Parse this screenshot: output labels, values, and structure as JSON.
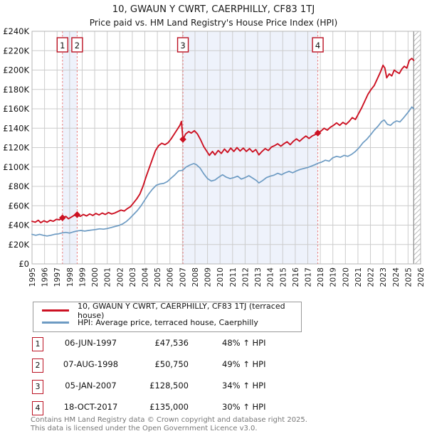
{
  "header": {
    "title": "10, GWAUN Y CWRT, CAERPHILLY, CF83 1TJ",
    "subtitle": "Price paid vs. HM Land Registry's House Price Index (HPI)"
  },
  "legend": {
    "items": [
      {
        "label": "10, GWAUN Y CWRT, CAERPHILLY, CF83 1TJ (terraced house)",
        "color": "#cc1122"
      },
      {
        "label": "HPI: Average price, terraced house, Caerphilly",
        "color": "#6d9bc3"
      }
    ]
  },
  "table": {
    "rows": [
      {
        "num": "1",
        "date": "06-JUN-1997",
        "price": "£47,536",
        "vs_hpi": "48% ↑ HPI"
      },
      {
        "num": "2",
        "date": "07-AUG-1998",
        "price": "£50,750",
        "vs_hpi": "49% ↑ HPI"
      },
      {
        "num": "3",
        "date": "05-JAN-2007",
        "price": "£128,500",
        "vs_hpi": "34% ↑ HPI"
      },
      {
        "num": "4",
        "date": "18-OCT-2017",
        "price": "£135,000",
        "vs_hpi": "30% ↑ HPI"
      }
    ]
  },
  "footer": {
    "line1": "Contains HM Land Registry data © Crown copyright and database right 2025.",
    "line2": "This data is licensed under the Open Government Licence v3.0."
  },
  "chart_data": {
    "type": "line",
    "title": "10, GWAUN Y CWRT, CAERPHILLY, CF83 1TJ",
    "subtitle": "Price paid vs. HM Land Registry's House Price Index (HPI)",
    "xlabel": "",
    "ylabel": "",
    "grid": true,
    "legend_position": "bottom",
    "axis": {
      "x_min": 1995,
      "x_max": 2026,
      "y_min": 0,
      "y_max": 240000,
      "y_step": 20000
    },
    "x_ticks": [
      1995,
      1996,
      1997,
      1998,
      1999,
      2000,
      2001,
      2002,
      2003,
      2004,
      2005,
      2006,
      2007,
      2008,
      2009,
      2010,
      2011,
      2012,
      2013,
      2014,
      2015,
      2016,
      2017,
      2018,
      2019,
      2020,
      2021,
      2022,
      2023,
      2024,
      2025,
      2026
    ],
    "y_tick_labels": [
      "£0",
      "£20K",
      "£40K",
      "£60K",
      "£80K",
      "£100K",
      "£120K",
      "£140K",
      "£160K",
      "£180K",
      "£200K",
      "£220K",
      "£240K"
    ],
    "colors": {
      "grid": "#cccccc",
      "plot_border": "#b5b5b5",
      "band": "#eef2fb",
      "sale_dash": "#e87a7a",
      "badge_border": "#bb1122",
      "hatch": "#bbbbbb",
      "hatch_edge": "#8a8a8a"
    },
    "shaded_periods": [
      [
        1997.43,
        1998.6
      ],
      [
        2007.04,
        2017.8
      ]
    ],
    "hatch": {
      "from": 2025.45,
      "to": 2026
    },
    "sales": [
      {
        "label": "1",
        "year": 1997.43,
        "price_value": 47536,
        "date": "06-JUN-1997",
        "vs_hpi": "48% ↑ HPI"
      },
      {
        "label": "2",
        "year": 1998.6,
        "price_value": 50750,
        "date": "07-AUG-1998",
        "vs_hpi": "49% ↑ HPI"
      },
      {
        "label": "3",
        "year": 2007.04,
        "price_value": 128500,
        "date": "05-JAN-2007",
        "vs_hpi": "34% ↑ HPI"
      },
      {
        "label": "4",
        "year": 2017.8,
        "price_value": 135000,
        "date": "18-OCT-2017",
        "vs_hpi": "30% ↑ HPI"
      }
    ],
    "series": [
      {
        "name": "10, GWAUN Y CWRT, CAERPHILLY, CF83 1TJ (terraced house)",
        "color": "#cc1122",
        "width": 1.9,
        "points": [
          [
            1995.0,
            44000
          ],
          [
            1995.25,
            43000
          ],
          [
            1995.5,
            45000
          ],
          [
            1995.7,
            42500
          ],
          [
            1995.95,
            44500
          ],
          [
            1996.2,
            43000
          ],
          [
            1996.45,
            45000
          ],
          [
            1996.7,
            44000
          ],
          [
            1996.95,
            46000
          ],
          [
            1997.2,
            45500
          ],
          [
            1997.43,
            47536
          ],
          [
            1997.7,
            49000
          ],
          [
            1997.9,
            46500
          ],
          [
            1998.1,
            48000
          ],
          [
            1998.35,
            50000
          ],
          [
            1998.6,
            50750
          ],
          [
            1998.85,
            49000
          ],
          [
            1999.1,
            51000
          ],
          [
            1999.35,
            49500
          ],
          [
            1999.6,
            51500
          ],
          [
            1999.85,
            50000
          ],
          [
            2000.1,
            52000
          ],
          [
            2000.35,
            50500
          ],
          [
            2000.6,
            52500
          ],
          [
            2000.85,
            51000
          ],
          [
            2001.1,
            53000
          ],
          [
            2001.35,
            51500
          ],
          [
            2001.6,
            52500
          ],
          [
            2001.85,
            54000
          ],
          [
            2002.1,
            55500
          ],
          [
            2002.35,
            54500
          ],
          [
            2002.6,
            57000
          ],
          [
            2002.85,
            59000
          ],
          [
            2003.1,
            63000
          ],
          [
            2003.35,
            67000
          ],
          [
            2003.6,
            72000
          ],
          [
            2003.85,
            80000
          ],
          [
            2004.1,
            90000
          ],
          [
            2004.35,
            99000
          ],
          [
            2004.6,
            108000
          ],
          [
            2004.85,
            117000
          ],
          [
            2005.1,
            122000
          ],
          [
            2005.35,
            124500
          ],
          [
            2005.6,
            123000
          ],
          [
            2005.85,
            125000
          ],
          [
            2006.1,
            129000
          ],
          [
            2006.35,
            134000
          ],
          [
            2006.6,
            139000
          ],
          [
            2006.8,
            143000
          ],
          [
            2006.92,
            147000
          ],
          [
            2007.04,
            128500
          ],
          [
            2007.25,
            134000
          ],
          [
            2007.5,
            136500
          ],
          [
            2007.7,
            135000
          ],
          [
            2007.95,
            137500
          ],
          [
            2008.2,
            134000
          ],
          [
            2008.45,
            128000
          ],
          [
            2008.7,
            121000
          ],
          [
            2008.95,
            116000
          ],
          [
            2009.15,
            112000
          ],
          [
            2009.4,
            116000
          ],
          [
            2009.6,
            112500
          ],
          [
            2009.85,
            117000
          ],
          [
            2010.1,
            114000
          ],
          [
            2010.35,
            118500
          ],
          [
            2010.6,
            115000
          ],
          [
            2010.85,
            119500
          ],
          [
            2011.1,
            116000
          ],
          [
            2011.35,
            120000
          ],
          [
            2011.6,
            116500
          ],
          [
            2011.85,
            119500
          ],
          [
            2012.1,
            116000
          ],
          [
            2012.35,
            119000
          ],
          [
            2012.6,
            115500
          ],
          [
            2012.85,
            118000
          ],
          [
            2013.1,
            112500
          ],
          [
            2013.35,
            116000
          ],
          [
            2013.6,
            119000
          ],
          [
            2013.85,
            117000
          ],
          [
            2014.1,
            120500
          ],
          [
            2014.35,
            122000
          ],
          [
            2014.6,
            124000
          ],
          [
            2014.85,
            121500
          ],
          [
            2015.1,
            124000
          ],
          [
            2015.35,
            126000
          ],
          [
            2015.6,
            123000
          ],
          [
            2015.85,
            126500
          ],
          [
            2016.1,
            129000
          ],
          [
            2016.35,
            126500
          ],
          [
            2016.6,
            129500
          ],
          [
            2016.85,
            132000
          ],
          [
            2017.1,
            129500
          ],
          [
            2017.35,
            132000
          ],
          [
            2017.6,
            133500
          ],
          [
            2017.8,
            135000
          ],
          [
            2018.05,
            137000
          ],
          [
            2018.3,
            140000
          ],
          [
            2018.55,
            138000
          ],
          [
            2018.8,
            141000
          ],
          [
            2019.05,
            143000
          ],
          [
            2019.3,
            145500
          ],
          [
            2019.55,
            143000
          ],
          [
            2019.8,
            146000
          ],
          [
            2020.05,
            144000
          ],
          [
            2020.3,
            147000
          ],
          [
            2020.55,
            151000
          ],
          [
            2020.8,
            149000
          ],
          [
            2021.05,
            155000
          ],
          [
            2021.3,
            161000
          ],
          [
            2021.55,
            168000
          ],
          [
            2021.8,
            175000
          ],
          [
            2022.05,
            180000
          ],
          [
            2022.3,
            184000
          ],
          [
            2022.55,
            191000
          ],
          [
            2022.8,
            198000
          ],
          [
            2023.0,
            205000
          ],
          [
            2023.15,
            202000
          ],
          [
            2023.3,
            192000
          ],
          [
            2023.5,
            196000
          ],
          [
            2023.7,
            194000
          ],
          [
            2023.9,
            200000
          ],
          [
            2024.1,
            198000
          ],
          [
            2024.3,
            196500
          ],
          [
            2024.5,
            201000
          ],
          [
            2024.7,
            204000
          ],
          [
            2024.9,
            202000
          ],
          [
            2025.1,
            210000
          ],
          [
            2025.3,
            212000
          ],
          [
            2025.45,
            210000
          ]
        ]
      },
      {
        "name": "HPI: Average price, terraced house, Caerphilly",
        "color": "#6d9bc3",
        "width": 1.7,
        "points": [
          [
            1995.0,
            30500
          ],
          [
            1995.3,
            29500
          ],
          [
            1995.6,
            30500
          ],
          [
            1995.9,
            29500
          ],
          [
            1996.2,
            28800
          ],
          [
            1996.5,
            29500
          ],
          [
            1996.8,
            30500
          ],
          [
            1997.1,
            31000
          ],
          [
            1997.43,
            32100
          ],
          [
            1997.7,
            32500
          ],
          [
            1998.0,
            31800
          ],
          [
            1998.3,
            33000
          ],
          [
            1998.6,
            34000
          ],
          [
            1998.9,
            34500
          ],
          [
            1999.2,
            33800
          ],
          [
            1999.5,
            34500
          ],
          [
            1999.8,
            35000
          ],
          [
            2000.1,
            35500
          ],
          [
            2000.4,
            36200
          ],
          [
            2000.7,
            35800
          ],
          [
            2001.0,
            36500
          ],
          [
            2001.3,
            37500
          ],
          [
            2001.6,
            38500
          ],
          [
            2001.9,
            39500
          ],
          [
            2002.2,
            41000
          ],
          [
            2002.5,
            43500
          ],
          [
            2002.8,
            47000
          ],
          [
            2003.1,
            51000
          ],
          [
            2003.4,
            55000
          ],
          [
            2003.7,
            60000
          ],
          [
            2004.0,
            66000
          ],
          [
            2004.3,
            72000
          ],
          [
            2004.6,
            77000
          ],
          [
            2004.9,
            81000
          ],
          [
            2005.2,
            82500
          ],
          [
            2005.5,
            83000
          ],
          [
            2005.8,
            85000
          ],
          [
            2006.1,
            88500
          ],
          [
            2006.4,
            92000
          ],
          [
            2006.7,
            96000
          ],
          [
            2007.0,
            96500
          ],
          [
            2007.3,
            100000
          ],
          [
            2007.6,
            102000
          ],
          [
            2007.9,
            103500
          ],
          [
            2008.1,
            102500
          ],
          [
            2008.4,
            99000
          ],
          [
            2008.7,
            93000
          ],
          [
            2009.0,
            88000
          ],
          [
            2009.3,
            85500
          ],
          [
            2009.6,
            86500
          ],
          [
            2009.9,
            89500
          ],
          [
            2010.2,
            92000
          ],
          [
            2010.5,
            89500
          ],
          [
            2010.8,
            88000
          ],
          [
            2011.1,
            89000
          ],
          [
            2011.4,
            90500
          ],
          [
            2011.7,
            87500
          ],
          [
            2012.0,
            89000
          ],
          [
            2012.3,
            91000
          ],
          [
            2012.6,
            88500
          ],
          [
            2012.9,
            86000
          ],
          [
            2013.1,
            83500
          ],
          [
            2013.4,
            86000
          ],
          [
            2013.7,
            89000
          ],
          [
            2014.0,
            90500
          ],
          [
            2014.3,
            91500
          ],
          [
            2014.6,
            93500
          ],
          [
            2014.9,
            92000
          ],
          [
            2015.2,
            94000
          ],
          [
            2015.5,
            95500
          ],
          [
            2015.8,
            94000
          ],
          [
            2016.1,
            96000
          ],
          [
            2016.4,
            97500
          ],
          [
            2016.7,
            98500
          ],
          [
            2017.0,
            99500
          ],
          [
            2017.3,
            101000
          ],
          [
            2017.6,
            102500
          ],
          [
            2017.8,
            103800
          ],
          [
            2018.1,
            105000
          ],
          [
            2018.4,
            107000
          ],
          [
            2018.7,
            106000
          ],
          [
            2019.0,
            109500
          ],
          [
            2019.3,
            111000
          ],
          [
            2019.6,
            110000
          ],
          [
            2019.9,
            112000
          ],
          [
            2020.2,
            111000
          ],
          [
            2020.5,
            113000
          ],
          [
            2020.8,
            116000
          ],
          [
            2021.1,
            120000
          ],
          [
            2021.4,
            125000
          ],
          [
            2021.7,
            128500
          ],
          [
            2022.0,
            133000
          ],
          [
            2022.3,
            138000
          ],
          [
            2022.6,
            142000
          ],
          [
            2022.9,
            147000
          ],
          [
            2023.1,
            148500
          ],
          [
            2023.35,
            144000
          ],
          [
            2023.6,
            143000
          ],
          [
            2023.85,
            146000
          ],
          [
            2024.1,
            147500
          ],
          [
            2024.35,
            146500
          ],
          [
            2024.6,
            150000
          ],
          [
            2024.85,
            154000
          ],
          [
            2025.1,
            158000
          ],
          [
            2025.3,
            162000
          ],
          [
            2025.45,
            160000
          ]
        ]
      }
    ]
  }
}
